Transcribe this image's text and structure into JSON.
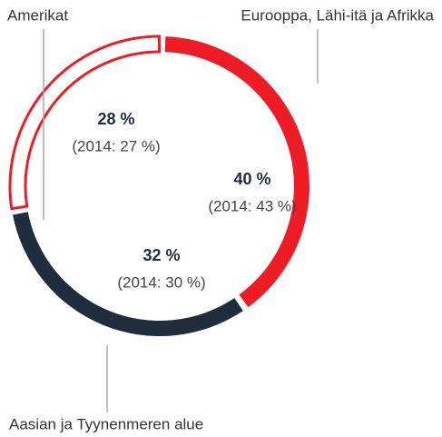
{
  "chart_data": {
    "type": "donut",
    "categories": [
      "Eurooppa, Lähi-itä ja Afrikka",
      "Aasian ja Tyynenmeren alue",
      "Amerikat"
    ],
    "values": [
      40,
      32,
      28
    ],
    "value_labels": [
      "40 %",
      "32 %",
      "28 %"
    ],
    "sublabels": [
      "(2014: 43 %)",
      "(2014: 30 %)",
      "(2014: 27 %)"
    ],
    "colors": [
      "#ee1c25",
      "#1f2d3d",
      "#ee1c25"
    ],
    "outlined": [
      false,
      false,
      true
    ]
  }
}
